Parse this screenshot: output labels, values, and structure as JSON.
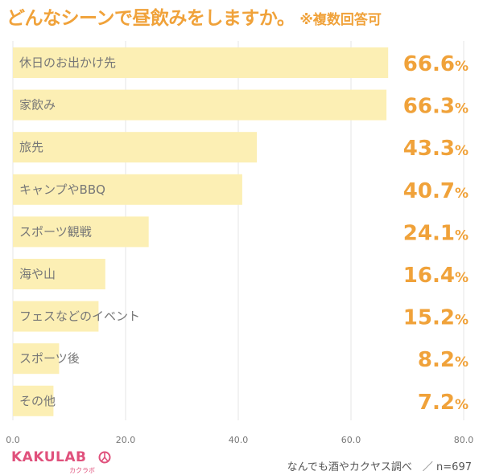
{
  "header": {
    "title": "どんなシーンで昼飲みをしますか。",
    "note": "※複数回答可"
  },
  "chart_data": {
    "type": "bar",
    "orientation": "horizontal",
    "categories": [
      "休日のお出かけ先",
      "家飲み",
      "旅先",
      "キャンプやBBQ",
      "スポーツ観戦",
      "海や山",
      "フェスなどのイベント",
      "スポーツ後",
      "その他"
    ],
    "values": [
      66.6,
      66.3,
      43.3,
      40.7,
      24.1,
      16.4,
      15.2,
      8.2,
      7.2
    ],
    "value_suffix": "%",
    "xlim": [
      0,
      80
    ],
    "xticks": [
      "0.0",
      "20.0",
      "40.0",
      "60.0",
      "80.0"
    ],
    "grid": true,
    "colors": {
      "bar": "#fcefb4",
      "value": "#f0a23a",
      "label": "#777777",
      "grid": "#e6e6e6"
    }
  },
  "footer": {
    "brand": "KAKULAB",
    "brand_sub": "カクラボ",
    "source": "なんでも酒やカクヤス調べ　／ n=697"
  },
  "colors": {
    "accent": "#f0a23a",
    "brand": "#e0517c"
  }
}
